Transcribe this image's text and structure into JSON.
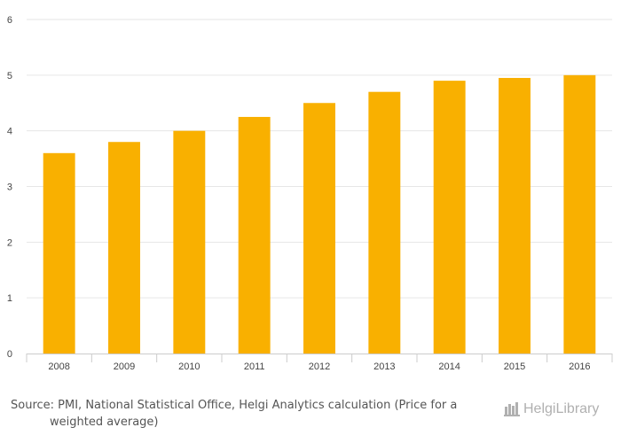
{
  "chart_data": {
    "type": "bar",
    "categories": [
      "2008",
      "2009",
      "2010",
      "2011",
      "2012",
      "2013",
      "2014",
      "2015",
      "2016"
    ],
    "values": [
      3.6,
      3.8,
      4.0,
      4.25,
      4.5,
      4.7,
      4.9,
      4.95,
      5.0
    ],
    "title": "",
    "xlabel": "",
    "ylabel": "",
    "ylim": [
      0,
      6
    ],
    "yticks": [
      "0",
      "1",
      "2",
      "3",
      "4",
      "5",
      "6"
    ],
    "grid": true,
    "bar_color": "#F9B000"
  },
  "footer": {
    "source": "Source: PMI, National Statistical Office, Helgi Analytics calculation (Price for a weighted average)",
    "brand": "HelgiLibrary"
  },
  "colors": {
    "grid": "#e6e6e6",
    "axis": "#cccccc",
    "tick_text": "#444444",
    "brand": "#b0b0b0"
  }
}
